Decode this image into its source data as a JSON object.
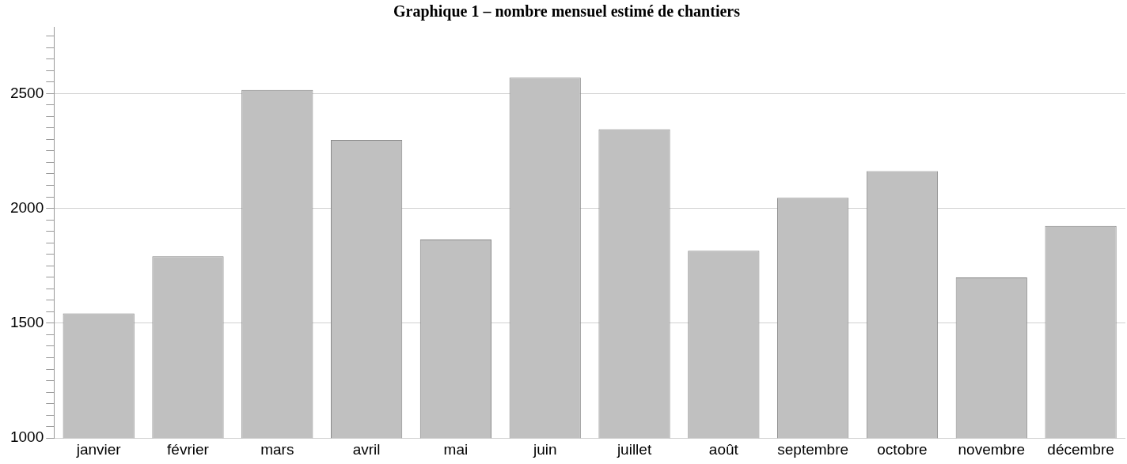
{
  "chart_data": {
    "type": "bar",
    "title": "Graphique 1 – nombre mensuel estimé de chantiers",
    "categories": [
      "janvier",
      "février",
      "mars",
      "avril",
      "mai",
      "juin",
      "juillet",
      "août",
      "septembre",
      "octobre",
      "novembre",
      "décembre"
    ],
    "values": [
      1543,
      1791,
      2516,
      2298,
      1864,
      2569,
      2344,
      1815,
      2046,
      2162,
      1699,
      1924
    ],
    "color": "#c0c0c0",
    "ylim": [
      1000,
      2790
    ],
    "yticks": [
      1000,
      {
        "value": 1050,
        "label": null
      },
      {
        "value": 1100,
        "label": null
      },
      {
        "value": 1150,
        "label": null
      },
      {
        "value": 1200,
        "label": null
      },
      {
        "value": 1250,
        "label": null
      },
      {
        "value": 1300,
        "label": null
      },
      {
        "value": 1350,
        "label": null
      },
      {
        "value": 1400,
        "label": null
      },
      {
        "value": 1450,
        "label": null
      },
      1500,
      {
        "value": 1550,
        "label": null
      },
      {
        "value": 1600,
        "label": null
      },
      {
        "value": 1650,
        "label": null
      },
      {
        "value": 1700,
        "label": null
      },
      {
        "value": 1750,
        "label": null
      },
      {
        "value": 1800,
        "label": null
      },
      {
        "value": 1850,
        "label": null
      },
      {
        "value": 1900,
        "label": null
      },
      {
        "value": 1950,
        "label": null
      },
      2000,
      {
        "value": 2050,
        "label": null
      },
      {
        "value": 2100,
        "label": null
      },
      {
        "value": 2150,
        "label": null
      },
      {
        "value": 2200,
        "label": null
      },
      {
        "value": 2250,
        "label": null
      },
      {
        "value": 2300,
        "label": null
      },
      {
        "value": 2350,
        "label": null
      },
      {
        "value": 2400,
        "label": null
      },
      {
        "value": 2450,
        "label": null
      },
      2500,
      {
        "value": 2550,
        "label": null
      },
      {
        "value": 2600,
        "label": null
      },
      {
        "value": 2650,
        "label": null
      },
      {
        "value": 2700,
        "label": null
      },
      {
        "value": 2750,
        "label": null
      }
    ],
    "grid": "y"
  }
}
